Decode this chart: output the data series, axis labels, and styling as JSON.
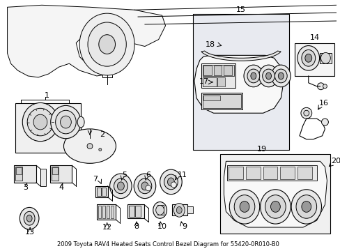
{
  "title": "2009 Toyota RAV4 Heated Seats Control Bezel Diagram for 55420-0R010-B0",
  "background_color": "#ffffff",
  "fig_width": 4.89,
  "fig_height": 3.6,
  "dpi": 100,
  "line_color": "#000000",
  "text_color": "#000000",
  "panel15_color": "#e8eaf0",
  "panel14_color": "#f5f5f5",
  "panel19_color": "#f0f0f0",
  "part_fill": "#f8f8f8",
  "part_fill2": "#e8e8e8",
  "part_fill3": "#d8d8d8",
  "font_size_title": 6.0,
  "font_size_labels": 8
}
